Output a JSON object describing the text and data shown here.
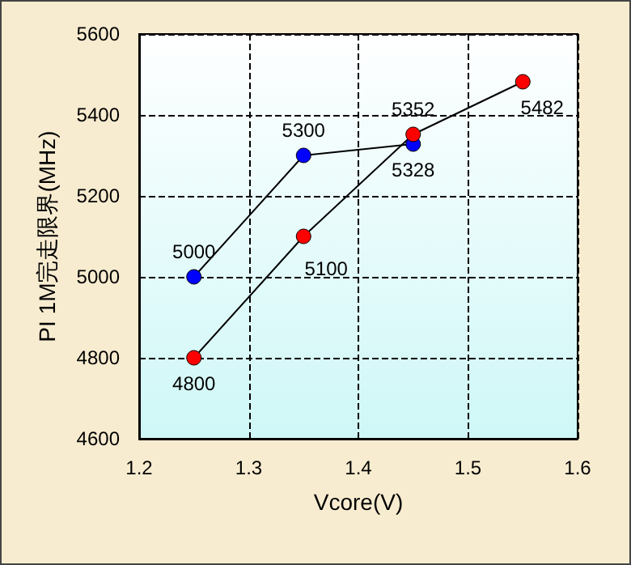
{
  "chart_data": {
    "type": "line",
    "xlabel": "Vcore(V)",
    "ylabel": "PI 1M完走限界(MHz)",
    "series": [
      {
        "color": "#0000ff",
        "x": [
          1.25,
          1.35,
          1.45
        ],
        "values": [
          5000,
          5300,
          5328
        ]
      },
      {
        "color": "#ff0000",
        "x": [
          1.25,
          1.35,
          1.45,
          1.55
        ],
        "values": [
          4800,
          5100,
          5352,
          5482
        ]
      }
    ],
    "xlim": [
      1.2,
      1.6
    ],
    "xticks": [
      1.2,
      1.3,
      1.4,
      1.5,
      1.6
    ],
    "ylim": [
      4600,
      5600
    ],
    "yticks": [
      4600,
      4800,
      5000,
      5200,
      5400,
      5600
    ],
    "grid": true,
    "marker": "circle",
    "line_style": "solid",
    "data_labels": true
  }
}
